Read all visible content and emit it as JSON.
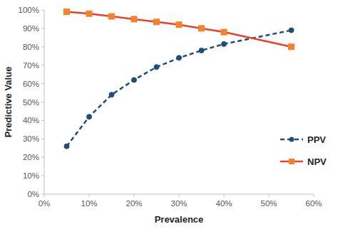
{
  "chart_data": {
    "type": "line",
    "x_label": "Prevalence",
    "y_label": "Predictive Value",
    "x": [
      5,
      10,
      15,
      20,
      25,
      30,
      35,
      40,
      55
    ],
    "series": [
      {
        "name": "PPV",
        "color": "#1f4e79",
        "line_style": "dashed",
        "marker": "circle",
        "values": [
          26,
          42,
          54,
          62,
          69,
          74,
          78,
          81.5,
          89
        ]
      },
      {
        "name": "NPV",
        "color": "#e8412c",
        "line_style": "solid",
        "marker": "square",
        "values": [
          99,
          98,
          96.5,
          95,
          93.5,
          92,
          90,
          88,
          80
        ]
      }
    ],
    "xlim": [
      0,
      60
    ],
    "ylim": [
      0,
      100
    ],
    "xticks": [
      {
        "value": 0,
        "label": "0%"
      },
      {
        "value": 10,
        "label": "10%"
      },
      {
        "value": 20,
        "label": "20%"
      },
      {
        "value": 30,
        "label": "30%"
      },
      {
        "value": 40,
        "label": "40%"
      },
      {
        "value": 50,
        "label": "50%"
      },
      {
        "value": 60,
        "label": "60%"
      }
    ],
    "yticks": [
      {
        "value": 0,
        "label": "0%"
      },
      {
        "value": 10,
        "label": "10%"
      },
      {
        "value": 20,
        "label": "20%"
      },
      {
        "value": 30,
        "label": "30%"
      },
      {
        "value": 40,
        "label": "40%"
      },
      {
        "value": 50,
        "label": "50%"
      },
      {
        "value": 60,
        "label": "60%"
      },
      {
        "value": 70,
        "label": "70%"
      },
      {
        "value": 80,
        "label": "80%"
      },
      {
        "value": 90,
        "label": "90%"
      },
      {
        "value": 100,
        "label": "100%"
      }
    ],
    "grid": false,
    "legend": "right"
  }
}
